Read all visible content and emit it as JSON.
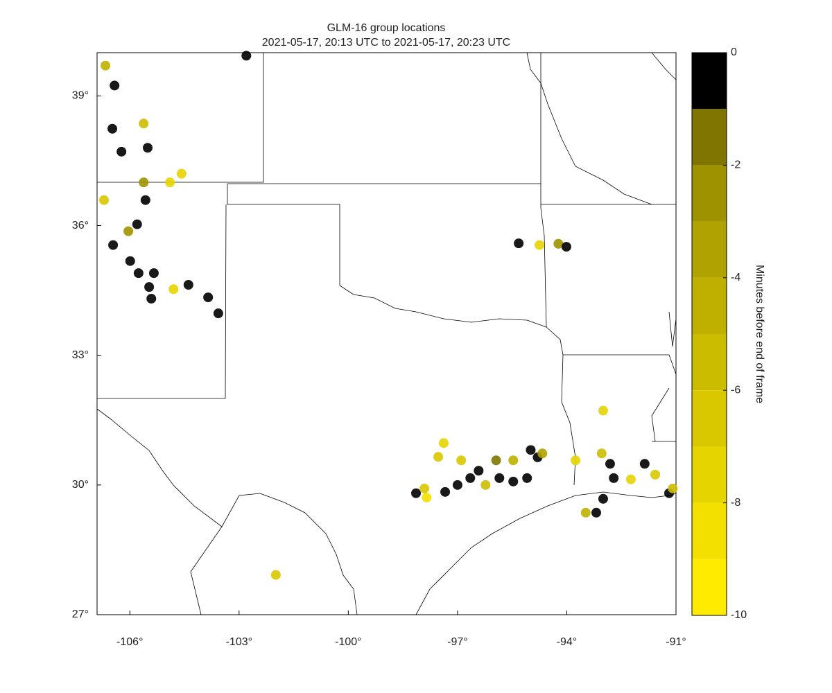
{
  "chart_data": {
    "type": "scatter",
    "title": "GLM-16 group locations",
    "subtitle": "2021-05-17, 20:13 UTC to 2021-05-17, 20:23 UTC",
    "xlim": [
      -106.9,
      -91
    ],
    "ylim": [
      27,
      40
    ],
    "xticks": [
      {
        "value": -106,
        "label": "-106°"
      },
      {
        "value": -103,
        "label": "-103°"
      },
      {
        "value": -100,
        "label": "-100°"
      },
      {
        "value": -97,
        "label": "-97°"
      },
      {
        "value": -94,
        "label": "-94°"
      },
      {
        "value": -91,
        "label": "-91°"
      }
    ],
    "yticks": [
      {
        "value": 27,
        "label": "27°"
      },
      {
        "value": 30,
        "label": "30°"
      },
      {
        "value": 33,
        "label": "33°"
      },
      {
        "value": 36,
        "label": "36°"
      },
      {
        "value": 39,
        "label": "39°"
      }
    ],
    "lon": [
      -106.67,
      -106.42,
      -106.48,
      -106.23,
      -105.62,
      -105.51,
      -105.62,
      -105.57,
      -105.8,
      -106.04,
      -106.46,
      -106.71,
      -105.99,
      -105.76,
      -105.47,
      -105.41,
      -105.34,
      -104.39,
      -104.8,
      -103.85,
      -103.57,
      -102.8,
      -104.9,
      -104.58,
      -95.32,
      -94.75,
      -94.23,
      -94.01,
      -101.99,
      -93.0,
      -98.14,
      -97.85,
      -97.91,
      -97.34,
      -97.0,
      -96.65,
      -96.42,
      -96.23,
      -95.85,
      -95.47,
      -95.09,
      -94.99,
      -94.8,
      -95.47,
      -95.94,
      -97.38,
      -97.53,
      -96.9,
      -94.67,
      -93.0,
      -93.19,
      -93.48,
      -92.81,
      -92.71,
      -92.24,
      -91.86,
      -91.57,
      -91.19,
      -91.09,
      -93.76,
      -93.04
    ],
    "lat": [
      39.7,
      39.24,
      38.24,
      37.71,
      38.36,
      37.8,
      37.0,
      36.59,
      36.03,
      35.87,
      35.55,
      36.59,
      35.18,
      34.9,
      34.58,
      34.31,
      34.9,
      34.63,
      34.53,
      34.34,
      33.97,
      39.93,
      37.0,
      37.2,
      35.59,
      35.55,
      35.58,
      35.51,
      27.92,
      31.72,
      29.81,
      29.71,
      29.92,
      29.84,
      30.0,
      30.16,
      30.33,
      30.0,
      30.16,
      30.08,
      30.16,
      30.81,
      30.64,
      30.57,
      30.57,
      30.97,
      30.65,
      30.57,
      30.73,
      29.68,
      29.36,
      29.36,
      30.49,
      30.16,
      30.13,
      30.49,
      30.24,
      29.81,
      29.92,
      30.57,
      30.73
    ],
    "minutes": [
      -5,
      0,
      0,
      0,
      -6,
      0,
      -3,
      0,
      0,
      -3,
      0,
      -7,
      0,
      0,
      0,
      0,
      0,
      0,
      -8,
      0,
      0,
      0,
      -8,
      -8,
      0,
      -8,
      -3,
      0,
      -7,
      -8,
      0,
      -9,
      -7,
      0,
      0,
      0,
      0,
      -6,
      0,
      0,
      0,
      0,
      0,
      -5,
      -2,
      -8,
      -7,
      -7,
      -4,
      0,
      0,
      -5,
      -1,
      0,
      -8,
      0,
      -7,
      0,
      -6,
      -8,
      -6
    ],
    "colorbar": {
      "label": "Minutes before end of frame",
      "clim": [
        -10,
        0
      ],
      "ticks": [
        0,
        -2,
        -4,
        -6,
        -8,
        -10
      ],
      "colors": [
        "#ffeb00",
        "#f3e000",
        "#e6d400",
        "#d9c800",
        "#ccbc00",
        "#bfb000",
        "#b0a200",
        "#9e9200",
        "#7f7500",
        "#000000"
      ]
    }
  }
}
